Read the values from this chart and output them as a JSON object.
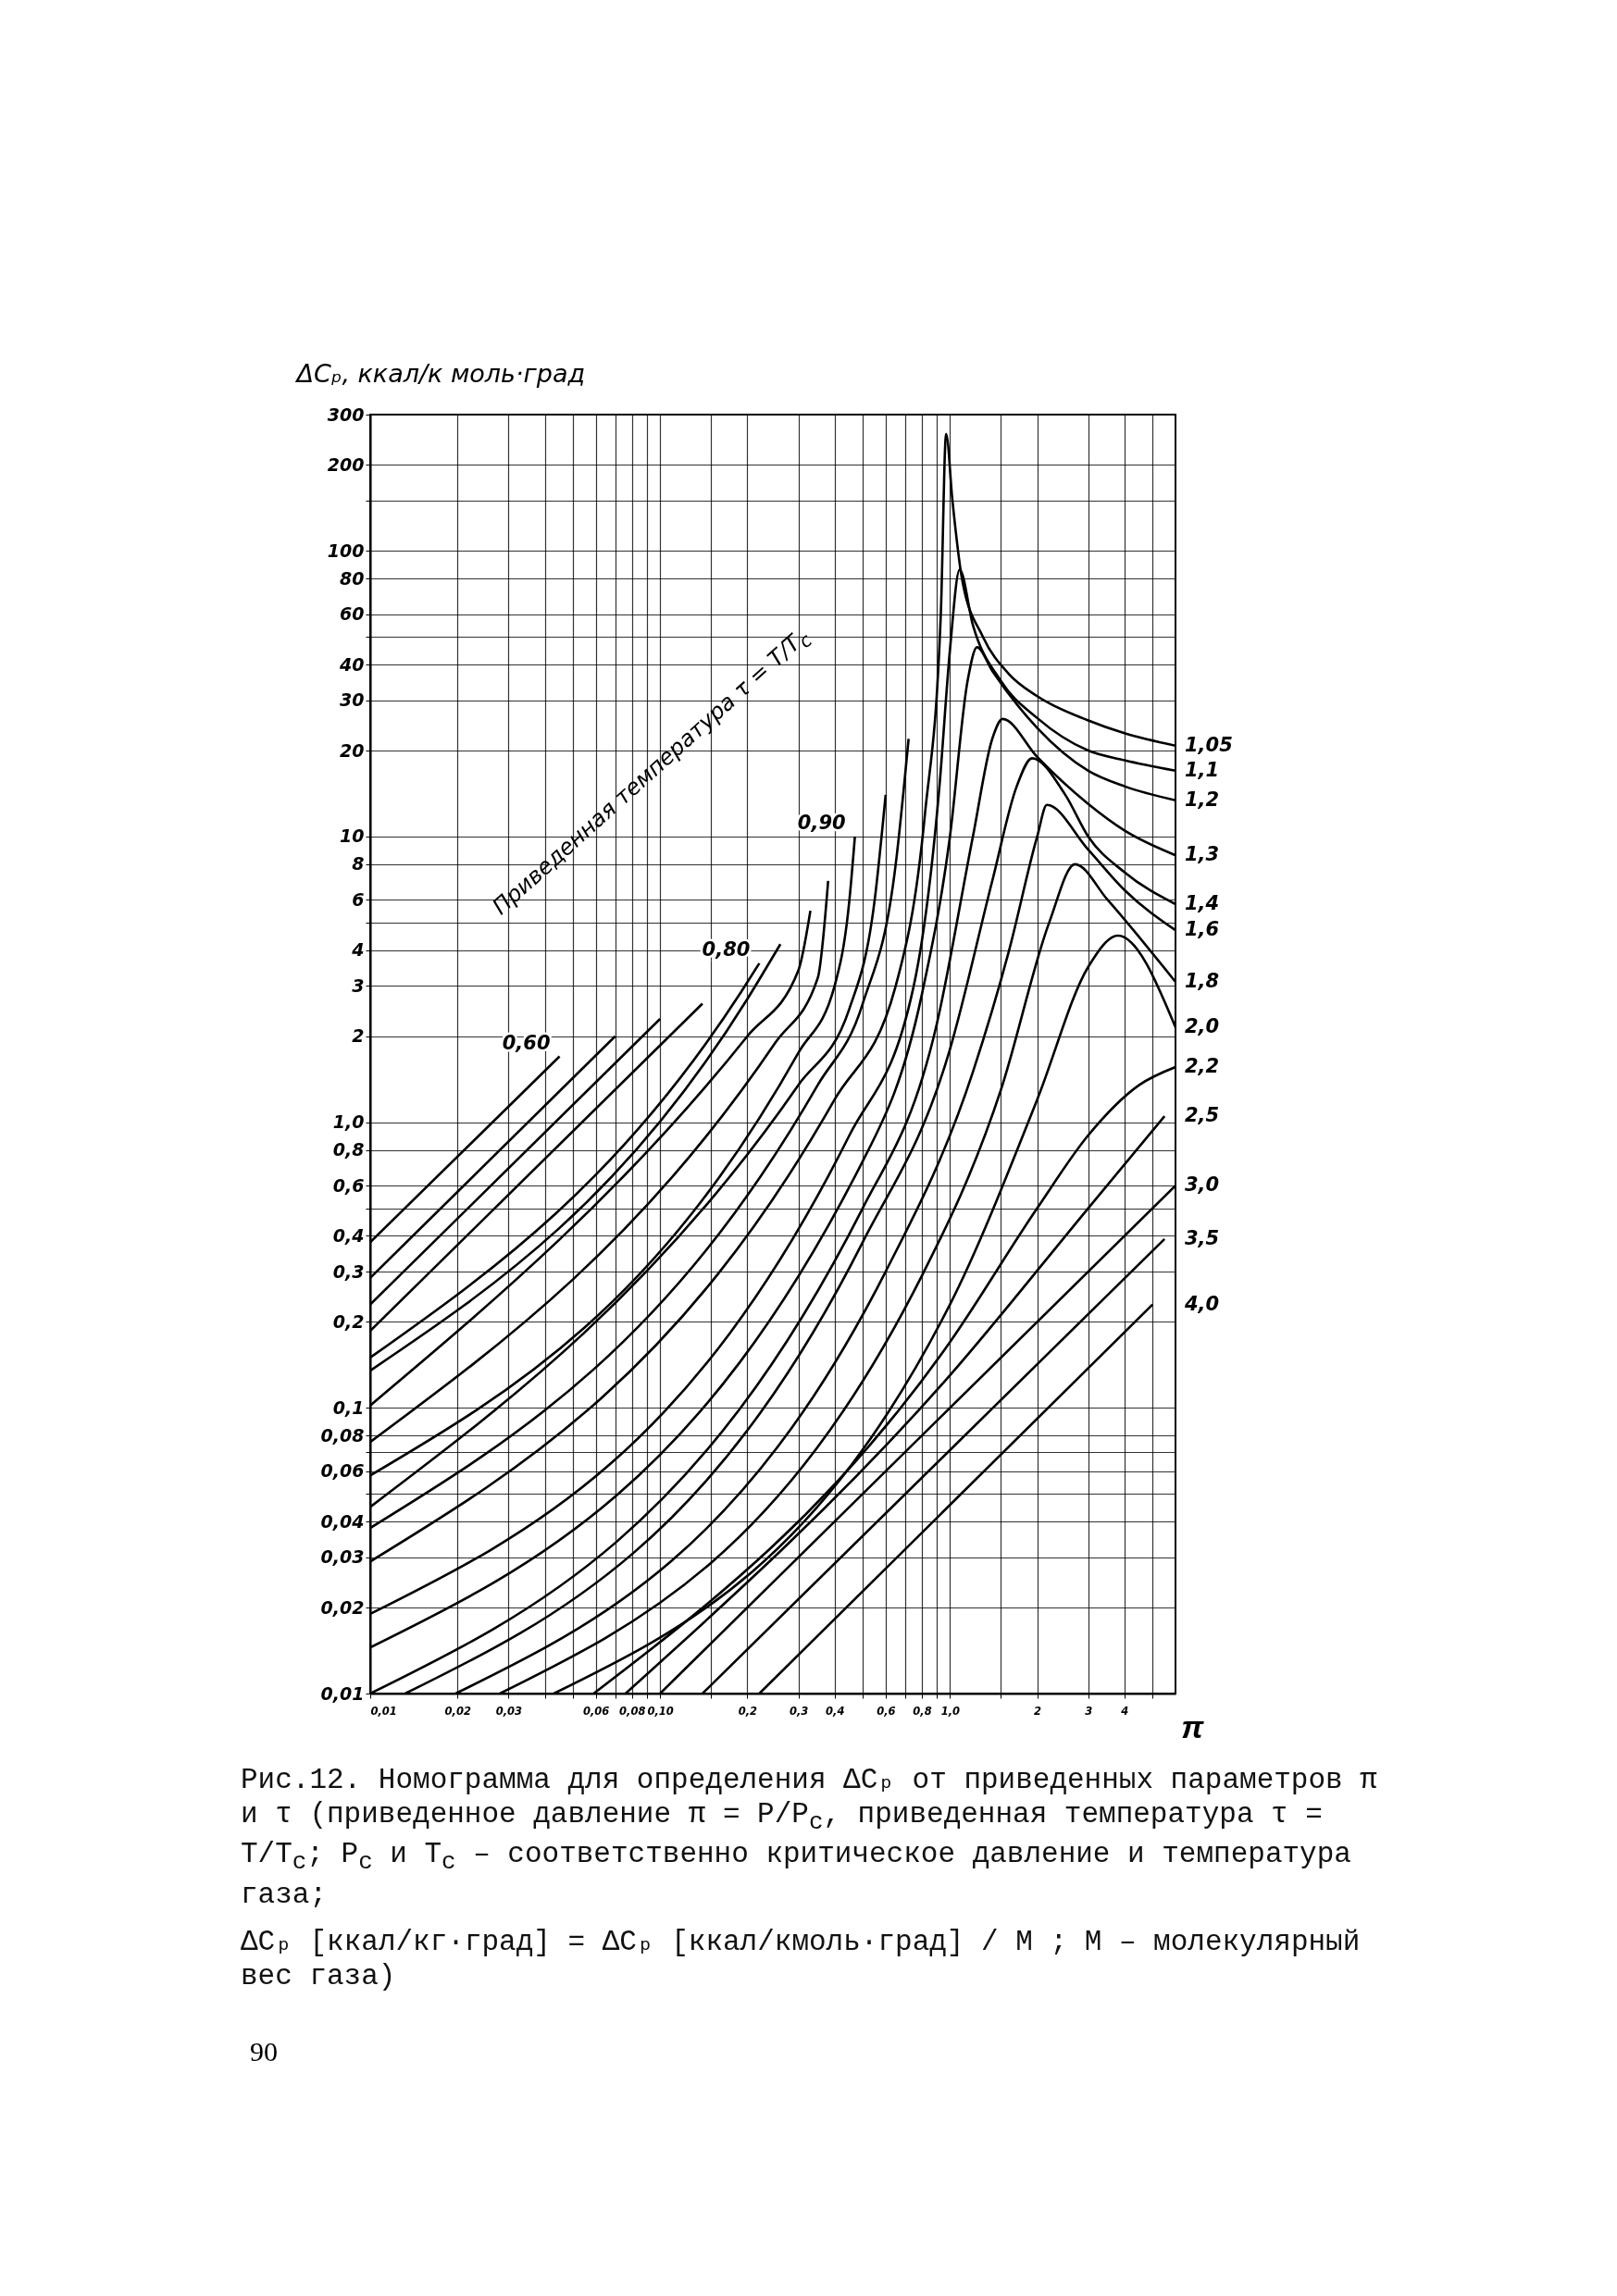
{
  "chart_data": {
    "type": "line",
    "xlabel": "π",
    "ylabel": "ΔCₚ, ккал/к моль·град",
    "log": "xy",
    "grid": true,
    "xlim": [
      0.01,
      6
    ],
    "ylim": [
      0.01,
      300
    ],
    "xticks": [
      {
        "value": 0.01,
        "label": "0,01"
      },
      {
        "value": 0.02,
        "label": "0,02"
      },
      {
        "value": 0.03,
        "label": "0,03"
      },
      {
        "value": 0.04,
        "label": null
      },
      {
        "value": 0.05,
        "label": null
      },
      {
        "value": 0.06,
        "label": "0,06"
      },
      {
        "value": 0.07,
        "label": null
      },
      {
        "value": 0.08,
        "label": "0,08"
      },
      {
        "value": 0.09,
        "label": null
      },
      {
        "value": 0.1,
        "label": "0,10"
      },
      {
        "value": 0.15,
        "label": null
      },
      {
        "value": 0.2,
        "label": "0,2"
      },
      {
        "value": 0.3,
        "label": "0,3"
      },
      {
        "value": 0.4,
        "label": "0,4"
      },
      {
        "value": 0.5,
        "label": null
      },
      {
        "value": 0.6,
        "label": "0,6"
      },
      {
        "value": 0.7,
        "label": null
      },
      {
        "value": 0.8,
        "label": "0,8"
      },
      {
        "value": 0.9,
        "label": null
      },
      {
        "value": 1,
        "label": "1,0"
      },
      {
        "value": 1.5,
        "label": null
      },
      2,
      3,
      4,
      {
        "value": 5,
        "label": null
      }
    ],
    "yticks": [
      {
        "value": 0.01,
        "label": "0,01"
      },
      {
        "value": 0.02,
        "label": "0,02"
      },
      {
        "value": 0.03,
        "label": "0,03"
      },
      {
        "value": 0.04,
        "label": "0,04"
      },
      {
        "value": 0.05,
        "label": null
      },
      {
        "value": 0.06,
        "label": "0,06"
      },
      {
        "value": 0.07,
        "label": null
      },
      {
        "value": 0.08,
        "label": "0,08"
      },
      {
        "value": 0.1,
        "label": "0,1"
      },
      {
        "value": 0.2,
        "label": "0,2"
      },
      {
        "value": 0.3,
        "label": "0,3"
      },
      {
        "value": 0.4,
        "label": "0,4"
      },
      {
        "value": 0.5,
        "label": null
      },
      {
        "value": 0.6,
        "label": "0,6"
      },
      {
        "value": 0.8,
        "label": "0,8"
      },
      {
        "value": 1,
        "label": "1,0"
      },
      2,
      3,
      4,
      {
        "value": 5,
        "label": null
      },
      6,
      8,
      10,
      20,
      30,
      40,
      {
        "value": 50,
        "label": null
      },
      60,
      80,
      100,
      {
        "value": 150,
        "label": null
      },
      200,
      300
    ],
    "series": [
      {
        "name": "0,60",
        "color": "#000000",
        "x": [
          0.01,
          0.045
        ],
        "values": [
          0.38,
          1.7
        ]
      },
      {
        "color": "#000000",
        "x": [
          0.01,
          0.07
        ],
        "values": [
          0.285,
          2.0
        ]
      },
      {
        "color": "#000000",
        "x": [
          0.01,
          0.1
        ],
        "values": [
          0.23,
          2.3
        ]
      },
      {
        "color": "#000000",
        "x": [
          0.01,
          0.14
        ],
        "values": [
          0.186,
          2.6
        ]
      },
      {
        "name": "0,80",
        "color": "#000000",
        "x": [
          0.01,
          0.19,
          0.22
        ],
        "values": [
          0.15,
          2.85,
          3.6
        ]
      },
      {
        "color": "#000000",
        "x": [
          0.01,
          0.2,
          0.26
        ],
        "values": [
          0.135,
          2.7,
          4.2
        ]
      },
      {
        "color": "#000000",
        "x": [
          0.01,
          0.2,
          0.3,
          0.33
        ],
        "values": [
          0.102,
          2.0,
          3.4,
          5.5
        ]
      },
      {
        "color": "#000000",
        "x": [
          0.01,
          0.25,
          0.35,
          0.38
        ],
        "values": [
          0.076,
          1.9,
          3.2,
          7
        ]
      },
      {
        "name": "0,90",
        "color": "#000000",
        "x": [
          0.01,
          0.3,
          0.4,
          0.45,
          0.47
        ],
        "values": [
          0.058,
          1.75,
          3,
          6,
          10
        ]
      },
      {
        "color": "#000000",
        "x": [
          0.01,
          0.3,
          0.45,
          0.55,
          0.6
        ],
        "values": [
          0.045,
          1.35,
          2.5,
          6,
          14
        ]
      },
      {
        "color": "#000000",
        "x": [
          0.01,
          0.35,
          0.5,
          0.65,
          0.72
        ],
        "values": [
          0.038,
          1.35,
          2.6,
          8,
          22
        ]
      },
      {
        "name": "1,05",
        "color": "#000000",
        "x": [
          0.01,
          0.4,
          0.65,
          0.82,
          0.93,
          0.97,
          1.02,
          1.1,
          1.3,
          1.6,
          2,
          3,
          4,
          6
        ],
        "values": [
          0.029,
          1.2,
          3,
          12,
          60,
          257,
          150,
          80,
          50,
          37,
          31,
          25.5,
          23,
          20.8
        ]
      },
      {
        "name": "1,1",
        "color": "#000000",
        "x": [
          0.01,
          0.45,
          0.75,
          0.92,
          1.0,
          1.08,
          1.2,
          1.5,
          2,
          3,
          4,
          6
        ],
        "values": [
          0.019,
          0.9,
          3,
          15,
          45,
          86,
          55,
          35,
          26,
          20,
          18.5,
          17
        ]
      },
      {
        "name": "1,2",
        "color": "#000000",
        "x": [
          0.01,
          0.5,
          0.8,
          1.0,
          1.15,
          1.24,
          1.4,
          2,
          3,
          4,
          6
        ],
        "values": [
          0.0145,
          0.73,
          2.8,
          10,
          35,
          46,
          38,
          24,
          17,
          15,
          13.4
        ]
      },
      {
        "name": "1,3",
        "color": "#000000",
        "x": [
          0.01,
          0.5,
          0.9,
          1.2,
          1.4,
          1.52,
          2,
          3,
          4,
          6
        ],
        "values": [
          0.01,
          0.5,
          2.2,
          10,
          22,
          25.8,
          19,
          13,
          10.5,
          8.6
        ]
      },
      {
        "name": "1,4",
        "color": "#000000",
        "x": [
          0.0132,
          0.5,
          1.0,
          1.4,
          1.7,
          1.92,
          2.5,
          3,
          4,
          6
        ],
        "values": [
          0.01,
          0.38,
          1.8,
          7,
          15,
          18.8,
          14,
          10,
          7.5,
          5.8
        ]
      },
      {
        "name": "1,6",
        "color": "#000000",
        "x": [
          0.0197,
          0.6,
          1.2,
          1.6,
          2.0,
          2.16,
          3,
          4,
          6
        ],
        "values": [
          0.01,
          0.3,
          1.5,
          4,
          10,
          12.9,
          9,
          6.5,
          4.7
        ]
      },
      {
        "name": "1,8",
        "color": "#000000",
        "x": [
          0.028,
          0.8,
          1.5,
          2.2,
          2.7,
          3.5,
          6
        ],
        "values": [
          0.01,
          0.29,
          1.3,
          5,
          8,
          6,
          3.1
        ]
      },
      {
        "name": "2,0",
        "color": "#000000",
        "x": [
          0.043,
          1,
          2,
          3,
          3.8,
          6
        ],
        "values": [
          0.01,
          0.23,
          1.2,
          3.5,
          4.5,
          2.15
        ]
      },
      {
        "name": "2,2",
        "color": "#000000",
        "x": [
          0.059,
          1,
          2,
          3,
          4.5,
          6
        ],
        "values": [
          0.01,
          0.17,
          0.5,
          0.9,
          1.35,
          1.56
        ]
      },
      {
        "name": "2,5",
        "color": "#000000",
        "x": [
          0.076,
          1,
          3,
          5.5
        ],
        "values": [
          0.01,
          0.13,
          0.5,
          1.05
        ]
      },
      {
        "name": "3,0",
        "color": "#000000",
        "x": [
          0.1,
          6
        ],
        "values": [
          0.01,
          0.6
        ]
      },
      {
        "name": "3,5",
        "color": "#000000",
        "x": [
          0.14,
          5.5
        ],
        "values": [
          0.01,
          0.39
        ]
      },
      {
        "name": "4,0",
        "color": "#000000",
        "x": [
          0.22,
          5
        ],
        "values": [
          0.01,
          0.23
        ]
      }
    ],
    "annotations": [
      "Приведенная температура τ = T/T$_{c}$",
      "Рис.12. Номограмма для определения ΔCₚ от приведенных параметров π и τ (приведенное давление π = P/P$_{c}$, приведенная температура τ = T/T$_{c}$; P$_{c}$ и T$_{c}$ – соответственно критическое давление и температура газа;",
      "ΔCₚ [ккал/кг·град] = ΔCₚ [ккал/кмоль·град] / M ;  M – молекулярный вес газа)",
      "90"
    ]
  }
}
